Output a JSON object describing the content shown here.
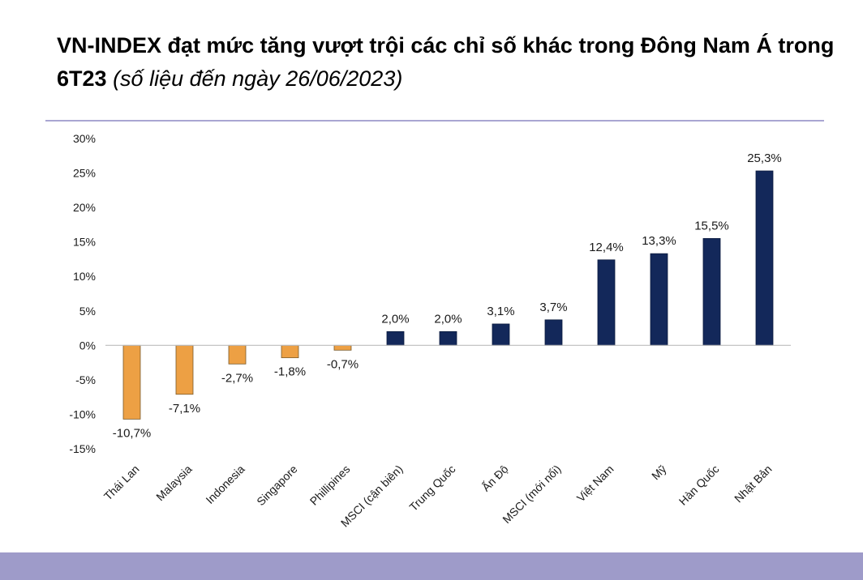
{
  "title": {
    "main": "VN-INDEX đạt mức tăng vượt trội các chỉ số khác trong Đông Nam Á trong 6T23",
    "note": "(số liệu đến ngày 26/06/2023)"
  },
  "colors": {
    "negative": "#eda044",
    "positive": "#13285a",
    "rule": "#a9a6d2",
    "band": "#9e9bc9"
  },
  "chart_data": {
    "type": "bar",
    "categories": [
      "Thái Lan",
      "Malaysia",
      "Indonesia",
      "Singapore",
      "Phillipines",
      "MSCI (cận biên)",
      "Trung Quốc",
      "Ấn Độ",
      "MSCI (mới nổi)",
      "Việt Nam",
      "Mỹ",
      "Hàn Quốc",
      "Nhật Bản"
    ],
    "values": [
      -10.7,
      -7.1,
      -2.7,
      -1.8,
      -0.7,
      2.0,
      2.0,
      3.1,
      3.7,
      12.4,
      13.3,
      15.5,
      25.3
    ],
    "value_labels": [
      "-10,7%",
      "-7,1%",
      "-2,7%",
      "-1,8%",
      "-0,7%",
      "2,0%",
      "2,0%",
      "3,1%",
      "3,7%",
      "12,4%",
      "13,3%",
      "15,5%",
      "25,3%"
    ],
    "yticks": [
      30,
      25,
      20,
      15,
      10,
      5,
      0,
      -5,
      -10,
      -15
    ],
    "ytick_labels": [
      "30%",
      "25%",
      "20%",
      "15%",
      "10%",
      "5%",
      "0%",
      "-5%",
      "-10%",
      "-15%"
    ],
    "ylim": [
      -15,
      30
    ],
    "xlabel": "",
    "ylabel": "",
    "grid": false,
    "legend": "none"
  }
}
